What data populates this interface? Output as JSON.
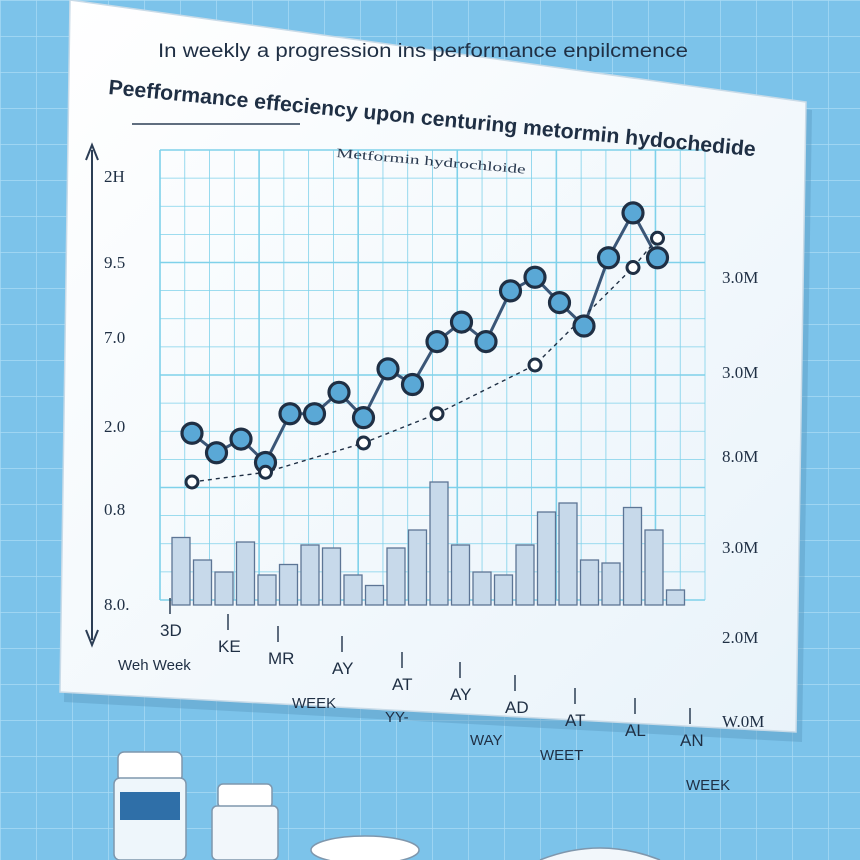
{
  "chart_data": {
    "type": "line",
    "title_line1": "In weekly  a progression  ins performance enpilcmence",
    "title_line2": "Peefformance effeciency upon centuring metormin hydochedide",
    "subtitle": "Metformin hydrochloide",
    "left_ticks": [
      "2H",
      "9.5",
      "7.0",
      "2.0",
      "0.8",
      "8.0."
    ],
    "right_ticks": [
      "3.0M",
      "3.0M",
      "8.0M",
      "3.0M",
      "2.0M",
      "W.0M"
    ],
    "x_labels_row1": [
      "3D",
      "KE",
      "MR",
      "AY",
      "AT",
      "AY",
      "AD",
      "AT",
      "AL",
      "AN"
    ],
    "x_labels_row2": [
      "Weh Week",
      "WEEK",
      "YY-",
      "WAY",
      "WEET",
      "WEEK"
    ],
    "series": [
      {
        "style": "solid-dots",
        "x": [
          1,
          2,
          3,
          4,
          5,
          6,
          7,
          8,
          9,
          10,
          11,
          12,
          13,
          14,
          15,
          16,
          17,
          18,
          19,
          20
        ],
        "values": [
          0.65,
          0.55,
          0.62,
          0.5,
          0.75,
          0.75,
          0.86,
          0.73,
          0.98,
          0.9,
          1.12,
          1.22,
          1.12,
          1.38,
          1.45,
          1.32,
          1.2,
          1.55,
          1.78,
          1.55
        ]
      },
      {
        "style": "dashed-open",
        "x": [
          1,
          4,
          8,
          11,
          15,
          19,
          20
        ],
        "values": [
          0.4,
          0.45,
          0.6,
          0.75,
          1.0,
          1.5,
          1.65
        ]
      }
    ],
    "bars": {
      "x": [
        1,
        2,
        3,
        4,
        5,
        6,
        7,
        8,
        9,
        10,
        11,
        12,
        13,
        14,
        15,
        16,
        17,
        18,
        19,
        20,
        21,
        22,
        23,
        24
      ],
      "values": [
        0.45,
        0.3,
        0.22,
        0.42,
        0.2,
        0.27,
        0.4,
        0.38,
        0.2,
        0.13,
        0.38,
        0.5,
        0.82,
        0.4,
        0.22,
        0.2,
        0.4,
        0.62,
        0.68,
        0.3,
        0.28,
        0.65,
        0.5,
        0.1
      ]
    },
    "grid": true,
    "legend": "none"
  },
  "colors": {
    "background": "#7cc3ea",
    "panel": "#f4f9fd",
    "grid": "#7fd1ea",
    "line": "#3b5677",
    "marker_fill": "#5aa8d6",
    "bar_fill": "#c7d9ea",
    "bar_stroke": "#5d7595"
  }
}
